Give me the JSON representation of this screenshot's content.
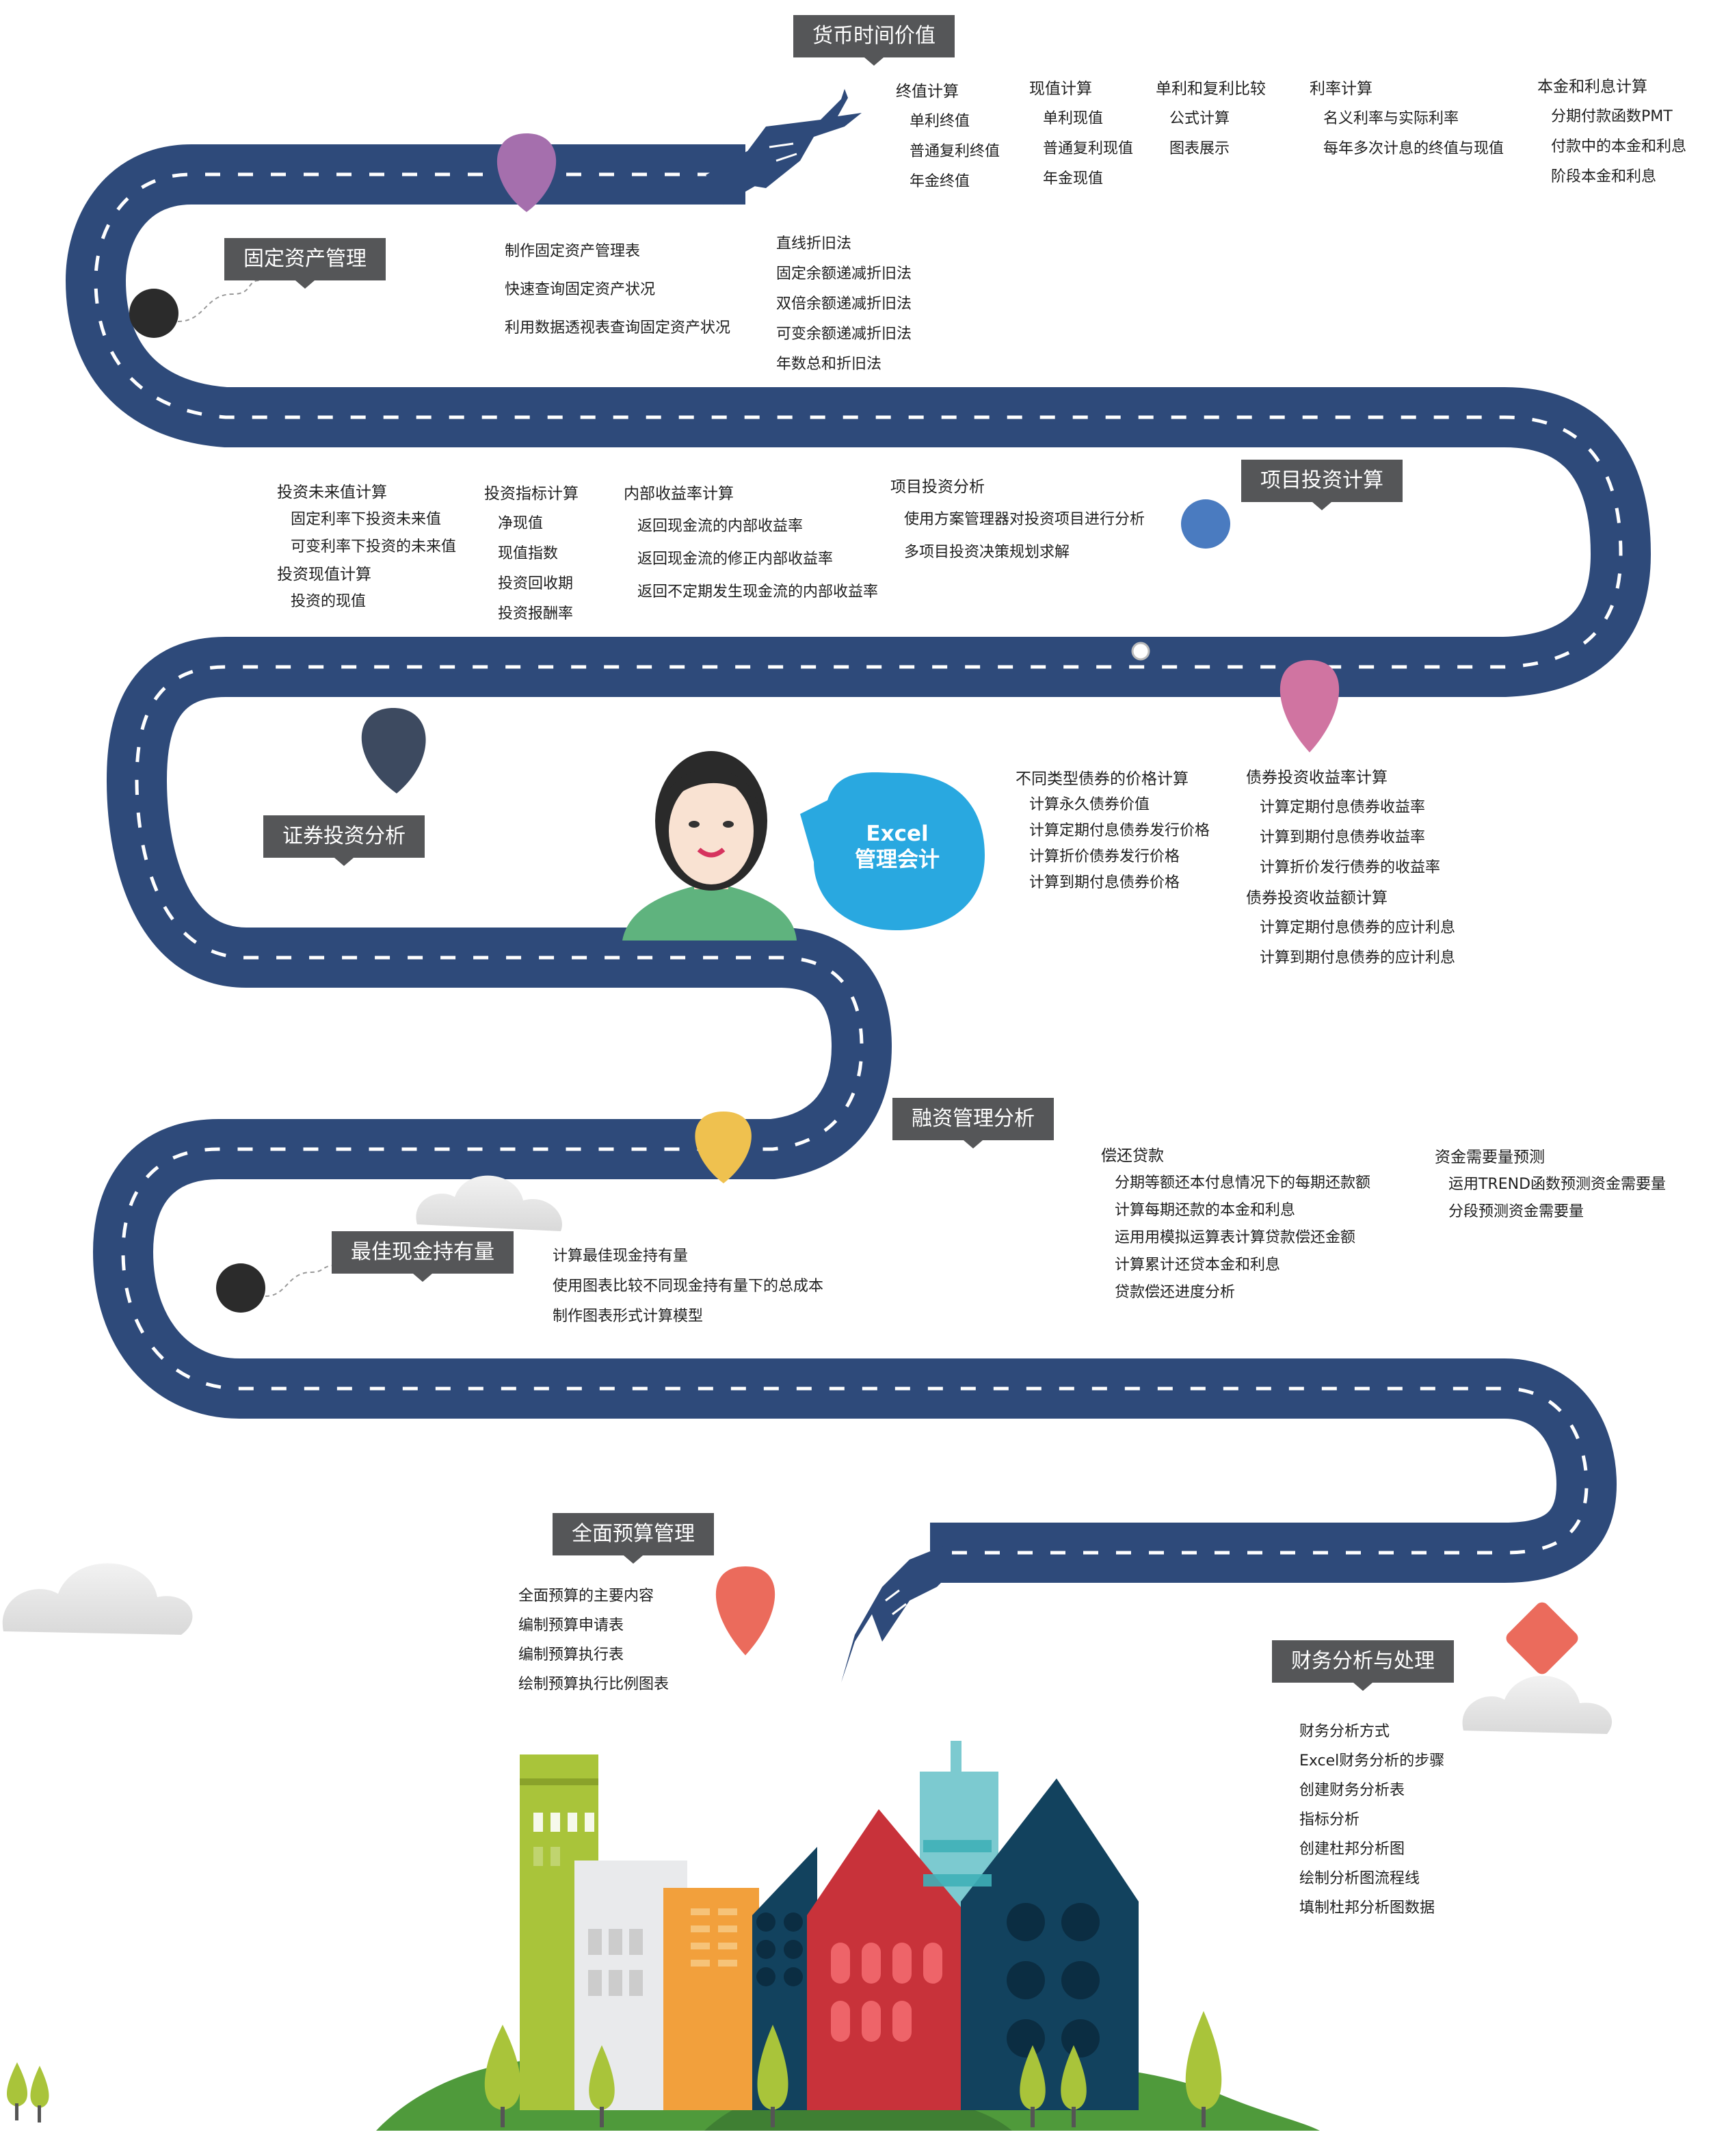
{
  "center": {
    "line1": "Excel",
    "line2": "管理会计"
  },
  "sections": {
    "money_time": {
      "title": "货币时间价值",
      "columns": [
        {
          "head": "终值计算",
          "items": [
            "单利终值",
            "普通复利终值",
            "年金终值"
          ]
        },
        {
          "head": "现值计算",
          "items": [
            "单利现值",
            "普通复利现值",
            "年金现值"
          ]
        },
        {
          "head": "单利和复利比较",
          "items": [
            "公式计算",
            "图表展示"
          ]
        },
        {
          "head": "利率计算",
          "items": [
            "名义利率与实际利率",
            "每年多次计息的终值与现值"
          ]
        },
        {
          "head": "本金和利息计算",
          "items": [
            "分期付款函数PMT",
            "付款中的本金和利息",
            "阶段本金和利息"
          ]
        }
      ]
    },
    "fixed_assets": {
      "title": "固定资产管理",
      "left_items": [
        "制作固定资产管理表",
        "快速查询固定资产状况",
        "利用数据透视表查询固定资产状况"
      ],
      "right_items": [
        "直线折旧法",
        "固定余额递减折旧法",
        "双倍余额递减折旧法",
        "可变余额递减折旧法",
        "年数总和折旧法"
      ]
    },
    "project_investment": {
      "title": "项目投资计算",
      "future_value": {
        "head": "投资未来值计算",
        "items": [
          "固定利率下投资未来值",
          "可变利率下投资的未来值"
        ]
      },
      "present_value": {
        "head": "投资现值计算",
        "items": [
          "投资的现值"
        ]
      },
      "indicators": {
        "head": "投资指标计算",
        "items": [
          "净现值",
          "现值指数",
          "投资回收期",
          "投资报酬率"
        ]
      },
      "irr": {
        "head": "内部收益率计算",
        "items": [
          "返回现金流的内部收益率",
          "返回现金流的修正内部收益率",
          "返回不定期发生现金流的内部收益率"
        ]
      },
      "analysis": {
        "head": "项目投资分析",
        "items": [
          "使用方案管理器对投资项目进行分析",
          "多项目投资决策规划求解"
        ]
      }
    },
    "securities": {
      "title": "证券投资分析",
      "price": {
        "head": "不同类型债券的价格计算",
        "items": [
          "计算永久债券价值",
          "计算定期付息债券发行价格",
          "计算折价债券发行价格",
          "计算到期付息债券价格"
        ]
      },
      "yield_rate": {
        "head": "债券投资收益率计算",
        "items": [
          "计算定期付息债券收益率",
          "计算到期付息债券收益率",
          "计算折价发行债券的收益率"
        ]
      },
      "yield_amount": {
        "head": "债券投资收益额计算",
        "items": [
          "计算定期付息债券的应计利息",
          "计算到期付息债券的应计利息"
        ]
      }
    },
    "financing": {
      "title": "融资管理分析",
      "loan": {
        "head": "偿还贷款",
        "items": [
          "分期等额还本付息情况下的每期还款额",
          "计算每期还款的本金和利息",
          "运用用模拟运算表计算贷款偿还金额",
          "计算累计还贷本金和利息",
          "贷款偿还进度分析"
        ]
      },
      "forecast": {
        "head": "资金需要量预测",
        "items": [
          "运用TREND函数预测资金需要量",
          "分段预测资金需要量"
        ]
      }
    },
    "cash": {
      "title": "最佳现金持有量",
      "items": [
        "计算最佳现金持有量",
        "使用图表比较不同现金持有量下的总成本",
        "制作图表形式计算模型"
      ]
    },
    "budget": {
      "title": "全面预算管理",
      "items": [
        "全面预算的主要内容",
        "编制预算申请表",
        "编制预算执行表",
        "绘制预算执行比例图表"
      ]
    },
    "analysis": {
      "title": "财务分析与处理",
      "items": [
        "财务分析方式",
        "Excel财务分析的步骤",
        "创建财务分析表",
        "指标分析",
        "创建杜邦分析图",
        "绘制分析图流程线",
        "填制杜邦分析图数据"
      ]
    }
  },
  "colors": {
    "road": "#2e4a7a",
    "label_box": "#555658",
    "bubble": "#29a8e0",
    "pin_purple": "#a56fad",
    "pin_blue": "#4a7bc0",
    "pin_pink": "#d074a1",
    "pin_slate": "#3d4a60",
    "pin_yellow": "#efc14f",
    "pin_coral": "#eb6b5c",
    "city_green": "#a9c43a",
    "city_red": "#c8323a",
    "city_navy": "#12425e"
  },
  "icons": [
    "pointing-hand-icon",
    "map-pin-icon",
    "cloud-icon",
    "tree-icon",
    "woman-avatar",
    "speech-bubble-icon"
  ]
}
